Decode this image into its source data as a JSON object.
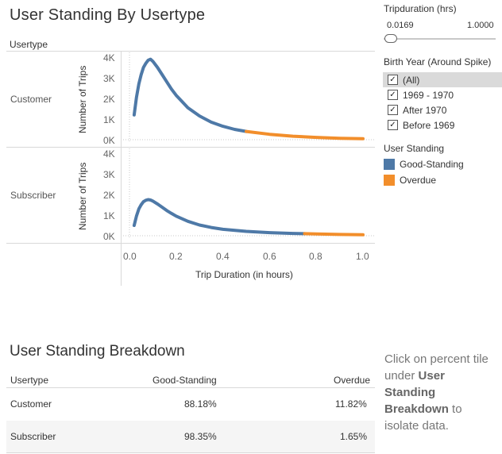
{
  "dashboard": {
    "title": "User Standing By Usertype",
    "usertype_header": "Usertype",
    "rows": [
      "Customer",
      "Subscriber"
    ],
    "y_axis_title": "Number of Trips",
    "x_axis_title": "Trip Duration (in hours)"
  },
  "chart_data": [
    {
      "type": "line",
      "panel": "Customer",
      "xlabel": "Trip Duration (in hours)",
      "ylabel": "Number of Trips",
      "xlim": [
        0,
        1.0
      ],
      "ylim": [
        0,
        4000
      ],
      "x_ticks": [
        "0.0",
        "0.2",
        "0.4",
        "0.6",
        "0.8",
        "1.0"
      ],
      "y_ticks": [
        "4K",
        "3K",
        "2K",
        "1K",
        "0K"
      ],
      "series": [
        {
          "name": "Good-Standing",
          "color": "#4e79a7",
          "x": [
            0.02,
            0.03,
            0.04,
            0.05,
            0.06,
            0.07,
            0.08,
            0.09,
            0.1,
            0.12,
            0.14,
            0.16,
            0.18,
            0.2,
            0.25,
            0.3,
            0.35,
            0.4,
            0.45,
            0.5
          ],
          "y": [
            1200,
            2050,
            2700,
            3150,
            3500,
            3700,
            3850,
            3900,
            3800,
            3500,
            3150,
            2800,
            2450,
            2150,
            1550,
            1150,
            850,
            650,
            500,
            400
          ]
        },
        {
          "name": "Overdue",
          "color": "#f28e2b",
          "x": [
            0.5,
            0.6,
            0.7,
            0.8,
            0.9,
            1.0
          ],
          "y": [
            400,
            260,
            170,
            110,
            70,
            50
          ]
        }
      ]
    },
    {
      "type": "line",
      "panel": "Subscriber",
      "xlabel": "Trip Duration (in hours)",
      "ylabel": "Number of Trips",
      "xlim": [
        0,
        1.0
      ],
      "ylim": [
        0,
        4000
      ],
      "x_ticks": [
        "0.0",
        "0.2",
        "0.4",
        "0.6",
        "0.8",
        "1.0"
      ],
      "y_ticks": [
        "4K",
        "3K",
        "2K",
        "1K",
        "0K"
      ],
      "series": [
        {
          "name": "Good-Standing",
          "color": "#4e79a7",
          "x": [
            0.02,
            0.03,
            0.04,
            0.05,
            0.06,
            0.07,
            0.08,
            0.09,
            0.1,
            0.12,
            0.14,
            0.16,
            0.18,
            0.2,
            0.25,
            0.3,
            0.35,
            0.4,
            0.5,
            0.6,
            0.7,
            0.75
          ],
          "y": [
            500,
            950,
            1300,
            1500,
            1650,
            1720,
            1750,
            1730,
            1680,
            1540,
            1380,
            1220,
            1080,
            950,
            700,
            520,
            400,
            310,
            210,
            150,
            110,
            100
          ]
        },
        {
          "name": "Overdue",
          "color": "#f28e2b",
          "x": [
            0.75,
            0.8,
            0.9,
            1.0
          ],
          "y": [
            100,
            85,
            60,
            45
          ]
        }
      ]
    }
  ],
  "filters": {
    "tripduration": {
      "title": "Tripduration (hrs)",
      "min": "0.0169",
      "max": "1.0000"
    },
    "birth_year": {
      "title": "Birth Year (Around Spike)",
      "options": [
        {
          "label": "(All)",
          "checked": true
        },
        {
          "label": "1969 - 1970",
          "checked": true
        },
        {
          "label": "After 1970",
          "checked": true
        },
        {
          "label": "Before 1969",
          "checked": true
        }
      ]
    },
    "legend": {
      "title": "User Standing",
      "items": [
        {
          "label": "Good-Standing",
          "color": "#4e79a7"
        },
        {
          "label": "Overdue",
          "color": "#f28e2b"
        }
      ]
    }
  },
  "breakdown": {
    "title": "User Standing Breakdown",
    "columns": [
      "Usertype",
      "Good-Standing",
      "Overdue"
    ],
    "rows": [
      {
        "usertype": "Customer",
        "good": "88.18%",
        "overdue": "11.82%"
      },
      {
        "usertype": "Subscriber",
        "good": "98.35%",
        "overdue": "1.65%"
      }
    ]
  },
  "note": {
    "text_before": "Click on percent tile under ",
    "bold": "User Standing Breakdown",
    "text_after": " to isolate data."
  }
}
